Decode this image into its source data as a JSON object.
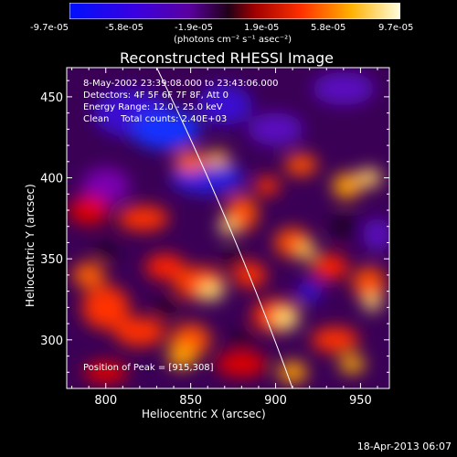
{
  "chart_data": {
    "type": "heatmap",
    "title": "Reconstructed RHESSI Image",
    "colorbar": {
      "ticks": [
        "-9.7e-05",
        "-5.8e-05",
        "-1.9e-05",
        "1.9e-05",
        "5.8e-05",
        "9.7e-05"
      ],
      "range": [
        -9.7e-05,
        9.7e-05
      ],
      "unit_label": "(photons cm⁻² s⁻¹ asec⁻²)"
    },
    "xlabel": "Heliocentric X (arcsec)",
    "ylabel": "Heliocentric Y (arcsec)",
    "xlim": [
      777,
      967
    ],
    "ylim": [
      270,
      468
    ],
    "x_ticks": [
      "800",
      "850",
      "900",
      "950"
    ],
    "y_ticks": [
      "300",
      "350",
      "400",
      "450"
    ],
    "annotations": [
      "8-May-2002 23:39:08.000 to 23:43:06.000",
      "Detectors: 4F 5F 6F 7F 8F, Att 0",
      "Energy Range: 12.0 - 25.0 keV",
      "Clean    Total counts: 2.40E+03"
    ],
    "peak_text": "Position of Peak = [915,308]",
    "peak": [
      915,
      308
    ],
    "limb_line": [
      [
        830,
        468
      ],
      [
        910,
        270
      ]
    ],
    "grid": false
  },
  "footer": {
    "date": "18-Apr-2013 06:07"
  },
  "colors": {
    "background": "#000000",
    "colormap": [
      "#0000ff",
      "#6a00cc",
      "#1a0010",
      "#cc0000",
      "#ff7a00",
      "#ffffd0"
    ]
  }
}
